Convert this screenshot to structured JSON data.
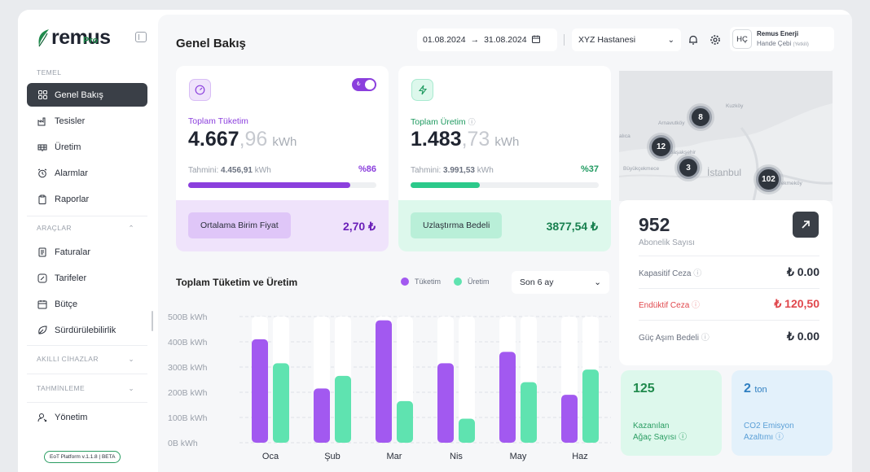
{
  "sidebar": {
    "logo": "remus",
    "logo_sub": "Pro",
    "sections": {
      "temel": "TEMEL",
      "araclar": "ARAÇLAR",
      "akilli": "AKILLI CİHAZLAR",
      "tahminleme": "TAHMİNLEME"
    },
    "temel_items": [
      "Genel Bakış",
      "Tesisler",
      "Üretim",
      "Alarmlar",
      "Raporlar"
    ],
    "araclar_items": [
      "Faturalar",
      "Tarifeler",
      "Bütçe",
      "Sürdürülebilirlik"
    ],
    "yonetim": "Yönetim",
    "version": "EoT Platform v.1.1.8 | BETA"
  },
  "header": {
    "title": "Genel Bakış",
    "date_start": "01.08.2024",
    "date_end": "31.08.2024",
    "hospital": "XYZ Hastanesi",
    "user_initials": "HÇ",
    "user_company": "Remus Enerji",
    "user_name": "Hande Çebi",
    "user_role": "(Yetkili)"
  },
  "consumption": {
    "label": "Toplam Tüketim",
    "value_int": "4.667",
    "value_dec": ",96",
    "unit": "kWh",
    "estimate_label": "Tahmini:",
    "estimate_value": "4.456,91",
    "estimate_unit": "kWh",
    "percent": "%86",
    "progress": 0.86,
    "toggle_symbol": "₺",
    "button": "Ortalama Birim Fiyat",
    "button_value": "2,70 ₺"
  },
  "production": {
    "label": "Toplam Üretim",
    "value_int": "1.483",
    "value_dec": ",73",
    "unit": "kWh",
    "estimate_label": "Tahmini:",
    "estimate_value": "3.991,53",
    "estimate_unit": "kWh",
    "percent": "%37",
    "progress": 0.37,
    "button": "Uzlaştırma Bedeli",
    "button_value": "3877,54 ₺"
  },
  "chart_section": {
    "title": "Toplam Tüketim ve Üretim",
    "legend_consumption": "Tüketim",
    "legend_production": "Üretim",
    "period": "Son 6 ay"
  },
  "chart_data": {
    "type": "bar",
    "categories": [
      "Oca",
      "Şub",
      "Mar",
      "Nis",
      "May",
      "Haz"
    ],
    "series": [
      {
        "name": "Tüketim",
        "values": [
          410,
          215,
          485,
          315,
          360,
          190
        ],
        "color": "#a259f0"
      },
      {
        "name": "Üretim",
        "values": [
          315,
          265,
          165,
          95,
          240,
          290
        ],
        "color": "#5fe3b0"
      }
    ],
    "yticks": [
      "0B kWh",
      "100B kWh",
      "200B kWh",
      "300B kWh",
      "400B kWh",
      "500B kWh"
    ],
    "ylim": [
      0,
      500
    ],
    "grid": true
  },
  "map": {
    "labels": [
      "Kuzköy",
      "Arnavutköy",
      "Başakşehir",
      "Büyükçekmece",
      "İstanbul",
      "alıca",
      "Çekmeköy"
    ],
    "clusters": [
      "8",
      "12",
      "3",
      "102"
    ]
  },
  "stats": {
    "subscribers": "952",
    "subscribers_label": "Abonelik Sayısı",
    "rows": [
      {
        "label": "Kapasitif Ceza",
        "value": "₺ 0.00"
      },
      {
        "label": "Endüktif Ceza",
        "value": "₺ 120,50"
      },
      {
        "label": "Güç Aşım Bedeli",
        "value": "₺ 0.00"
      }
    ]
  },
  "mini_cards": {
    "trees_value": "125",
    "trees_label_1": "Kazanılan",
    "trees_label_2": "Ağaç Sayısı",
    "co2_value": "2",
    "co2_unit": "ton",
    "co2_label_1": "CO2 Emisyon",
    "co2_label_2": "Azaltımı"
  },
  "colors": {
    "accent_purple": "#8b3fdd",
    "accent_green": "#1f8a4c",
    "danger": "#e0474c",
    "consumption_bg": "#efe3fb",
    "production_bg": "#ddf8ec",
    "co2_bg": "#e3f1fb"
  }
}
